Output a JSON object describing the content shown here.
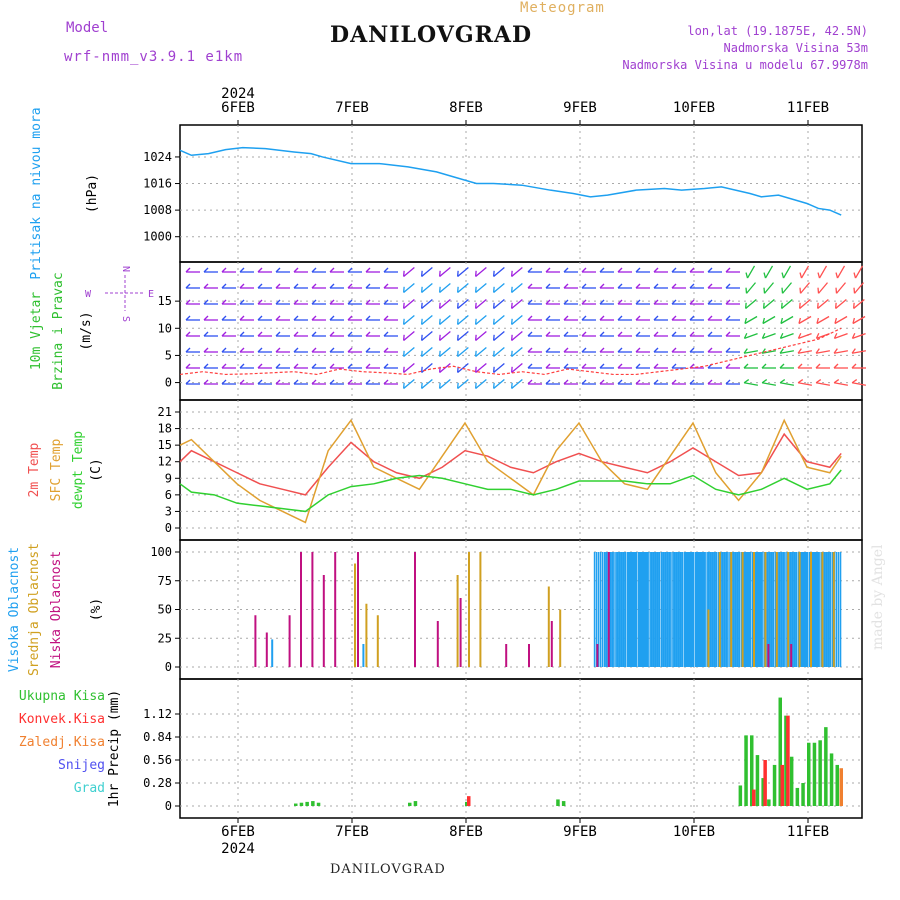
{
  "header": {
    "model_label": "Model",
    "model_name": "wrf-nmm_v3.9.1 e1km",
    "meteogram_label": "Meteogram",
    "station": "DANILOVGRAD",
    "location": "lon,lat (19.1875E, 42.5N)",
    "altitude": "Nadmorska Visina 53m",
    "model_altitude": "Nadmorska Visina u modelu 67.9978m",
    "credit": "made by Angel",
    "bottom_title": "DANILOVGRAD"
  },
  "colors": {
    "pressure": "#1ea0f0",
    "wind_speed": "#ff4040",
    "temp_2m": "#f05050",
    "temp_sfc": "#e0a030",
    "dewpoint": "#30d030",
    "cloud_high": "#20a0f0",
    "cloud_mid": "#d0a020",
    "cloud_low": "#c01080",
    "precip_total": "#30c030",
    "precip_conv": "#ff3030",
    "precip_froz": "#f08030",
    "snow": "#5050f0",
    "graupel": "#40d0d0"
  },
  "time_axis": {
    "year": "2024",
    "day_labels": [
      "6FEB",
      "7FEB",
      "8FEB",
      "9FEB",
      "10FEB",
      "11FEB"
    ]
  },
  "chart_data": [
    {
      "type": "line",
      "panel": "pressure",
      "ylabel_main": "Pritisak na nivou mora",
      "ylabel_unit": "(hPa)",
      "ylim": [
        996,
        1030
      ],
      "yticks": [
        1000,
        1008,
        1016,
        1024
      ],
      "grid": true,
      "series": [
        {
          "x": [
            0,
            0.1,
            0.25,
            0.4,
            0.55,
            0.75,
            1,
            1.15,
            1.25,
            1.5,
            1.75,
            2,
            2.25,
            2.4,
            2.6,
            2.75,
            3,
            3.25,
            3.45,
            3.6,
            3.75,
            4,
            4.25,
            4.4,
            4.6,
            4.75,
            5,
            5.1,
            5.25,
            5.4,
            5.5,
            5.6,
            5.7,
            5.8
          ],
          "values": [
            1026,
            1024.5,
            1025,
            1026.2,
            1026.8,
            1026.5,
            1025.5,
            1025,
            1024,
            1022,
            1022,
            1021,
            1019.5,
            1018,
            1016,
            1016,
            1015.5,
            1014,
            1013,
            1012,
            1012.5,
            1014,
            1014.5,
            1014,
            1014.5,
            1015,
            1013,
            1012,
            1012.5,
            1011,
            1010,
            1008.5,
            1008,
            1006.5
          ]
        }
      ]
    },
    {
      "type": "line",
      "panel": "wind",
      "ylabel_main": "10m Vjetar",
      "ylabel_sub": "Brzina i Pravac",
      "ylabel_unit": "(m/s)",
      "compass": [
        "W",
        "E",
        "N",
        "S"
      ],
      "ylim": [
        -1,
        20
      ],
      "yticks": [
        0,
        5,
        10,
        15
      ],
      "grid": true,
      "series": [
        {
          "name": "speed",
          "x": [
            0,
            0.2,
            0.4,
            0.6,
            0.8,
            1,
            1.2,
            1.4,
            1.6,
            1.8,
            2,
            2.2,
            2.4,
            2.6,
            2.8,
            3,
            3.2,
            3.4,
            3.6,
            3.8,
            4,
            4.2,
            4.4,
            4.6,
            4.8,
            5,
            5.2,
            5.4,
            5.6,
            5.8
          ],
          "values": [
            1.5,
            2,
            1.5,
            1.6,
            1.8,
            2,
            1.5,
            2.5,
            2,
            1.8,
            1.5,
            2.5,
            3,
            2,
            1.5,
            2,
            1.5,
            2.5,
            2,
            1.5,
            1.5,
            2,
            2.5,
            3,
            4,
            5,
            6,
            7,
            8,
            10
          ]
        }
      ]
    },
    {
      "type": "line",
      "panel": "temperature",
      "ylabel_main": "2m Temp",
      "ylabel_sub": "SFC Temp",
      "ylabel_sub2": "dewpt Temp",
      "ylabel_unit": "(C)",
      "ylim": [
        0,
        21
      ],
      "yticks": [
        0,
        3,
        6,
        9,
        12,
        15,
        18,
        21
      ],
      "grid": true,
      "series": [
        {
          "name": "2m Temp",
          "x": [
            0,
            0.1,
            0.3,
            0.5,
            0.7,
            0.9,
            1.1,
            1.3,
            1.5,
            1.7,
            1.9,
            2.1,
            2.3,
            2.5,
            2.7,
            2.9,
            3.1,
            3.3,
            3.5,
            3.7,
            3.9,
            4.1,
            4.3,
            4.5,
            4.7,
            4.9,
            5.1,
            5.3,
            5.5,
            5.7,
            5.8
          ],
          "values": [
            12,
            14,
            12,
            10,
            8,
            7,
            6,
            11,
            15.5,
            12,
            10,
            9,
            11,
            14,
            13,
            11,
            10,
            12,
            13.5,
            12,
            11,
            10,
            12,
            14.5,
            12,
            9.5,
            10,
            17,
            12,
            11,
            13.5
          ]
        },
        {
          "name": "SFC Temp",
          "x": [
            0,
            0.1,
            0.3,
            0.5,
            0.7,
            0.9,
            1.1,
            1.3,
            1.5,
            1.7,
            1.9,
            2.1,
            2.3,
            2.5,
            2.7,
            2.9,
            3.1,
            3.3,
            3.5,
            3.7,
            3.9,
            4.1,
            4.3,
            4.5,
            4.7,
            4.9,
            5.1,
            5.3,
            5.5,
            5.7,
            5.8
          ],
          "values": [
            15,
            16,
            12,
            8,
            5,
            3,
            1,
            14,
            19.5,
            11,
            9,
            7,
            13,
            19,
            12,
            9,
            6,
            14,
            19,
            12,
            8,
            7,
            13,
            19,
            10,
            5,
            10,
            19.5,
            11,
            10,
            13
          ]
        },
        {
          "name": "dewpt Temp",
          "x": [
            0,
            0.1,
            0.3,
            0.5,
            0.7,
            0.9,
            1.1,
            1.3,
            1.5,
            1.7,
            1.9,
            2.1,
            2.3,
            2.5,
            2.7,
            2.9,
            3.1,
            3.3,
            3.5,
            3.7,
            3.9,
            4.1,
            4.3,
            4.5,
            4.7,
            4.9,
            5.1,
            5.3,
            5.5,
            5.7,
            5.8
          ],
          "values": [
            8,
            6.5,
            6,
            4.5,
            4,
            3.5,
            3,
            6,
            7.5,
            8,
            9,
            9.5,
            9,
            8,
            7,
            7,
            6,
            7,
            8.5,
            8.5,
            8.5,
            8,
            8,
            9.5,
            7,
            6,
            7,
            9,
            7,
            8,
            10.5
          ]
        }
      ]
    },
    {
      "type": "bar",
      "panel": "cloud",
      "ylabel_main": "Visoka Oblacnost",
      "ylabel_sub": "Srednja Oblacnost",
      "ylabel_sub2": "Niska Oblacnost",
      "ylabel_unit": "(%)",
      "ylim": [
        0,
        100
      ],
      "yticks": [
        0,
        25,
        50,
        75,
        100
      ],
      "grid": true,
      "series": [
        {
          "name": "Visoka Oblacnost",
          "x": [
            0.8,
            1.6,
            3.5,
            3.6,
            3.7,
            3.8,
            3.9,
            4.0,
            4.1,
            4.2,
            4.3,
            4.4,
            4.5,
            4.6,
            4.7,
            4.8,
            4.9,
            5.0,
            5.1,
            5.2,
            5.3,
            5.4,
            5.5,
            5.6,
            5.7
          ],
          "values": [
            24,
            20,
            0,
            0,
            100,
            100,
            100,
            100,
            100,
            100,
            100,
            100,
            100,
            100,
            100,
            100,
            100,
            100,
            100,
            100,
            100,
            100,
            100,
            100,
            100
          ]
        },
        {
          "name": "Srednja Oblacnost",
          "x": [
            1.5,
            1.6,
            1.7,
            2.4,
            2.5,
            2.6,
            3.2,
            3.3,
            4.6,
            4.7,
            4.8,
            4.9,
            5.0,
            5.1,
            5.2,
            5.3,
            5.4,
            5.5,
            5.6,
            5.7
          ],
          "values": [
            90,
            55,
            45,
            80,
            100,
            100,
            70,
            50,
            50,
            100,
            100,
            100,
            100,
            100,
            100,
            100,
            100,
            100,
            100,
            100
          ]
        },
        {
          "name": "Niska Oblacnost",
          "x": [
            0.6,
            0.7,
            0.9,
            1.0,
            1.1,
            1.2,
            1.3,
            1.5,
            2.0,
            2.2,
            2.4,
            2.8,
            3.0,
            3.2,
            3.6,
            3.7,
            5.1,
            5.3
          ],
          "values": [
            45,
            30,
            45,
            100,
            100,
            80,
            100,
            100,
            100,
            40,
            60,
            20,
            20,
            40,
            20,
            100,
            20,
            20
          ]
        }
      ]
    },
    {
      "type": "bar",
      "panel": "precipitation",
      "ylabel_main": "1hr Precip (mm)",
      "legend": [
        "Ukupna Kisa",
        "Konvek.Kisa",
        "Zaledj.Kisa",
        "Snijeg",
        "Grad"
      ],
      "ylim": [
        0,
        1.4
      ],
      "yticks": [
        0,
        0.28,
        0.56,
        0.84,
        1.12
      ],
      "grid": true,
      "series": [
        {
          "name": "Ukupna Kisa",
          "x": [
            1.0,
            1.05,
            1.1,
            1.15,
            1.2,
            2.0,
            2.05,
            2.5,
            3.3,
            3.35,
            4.9,
            4.95,
            5.0,
            5.05,
            5.1,
            5.15,
            5.2,
            5.25,
            5.3,
            5.35,
            5.4,
            5.45,
            5.5,
            5.55,
            5.6,
            5.65,
            5.7,
            5.75
          ],
          "values": [
            0.03,
            0.04,
            0.05,
            0.06,
            0.04,
            0.04,
            0.06,
            0.05,
            0.08,
            0.06,
            0.25,
            0.86,
            0.86,
            0.62,
            0.34,
            0.08,
            0.5,
            1.32,
            1.1,
            0.6,
            0.22,
            0.28,
            0.77,
            0.77,
            0.8,
            0.96,
            0.64,
            0.5
          ]
        },
        {
          "name": "Konvek.Kisa",
          "x": [
            2.5,
            5.0,
            5.1,
            5.25,
            5.3
          ],
          "values": [
            0.12,
            0.2,
            0.56,
            0.5,
            1.1
          ]
        },
        {
          "name": "Zaledj.Kisa",
          "x": [
            5.75
          ],
          "values": [
            0.46
          ]
        }
      ]
    }
  ]
}
